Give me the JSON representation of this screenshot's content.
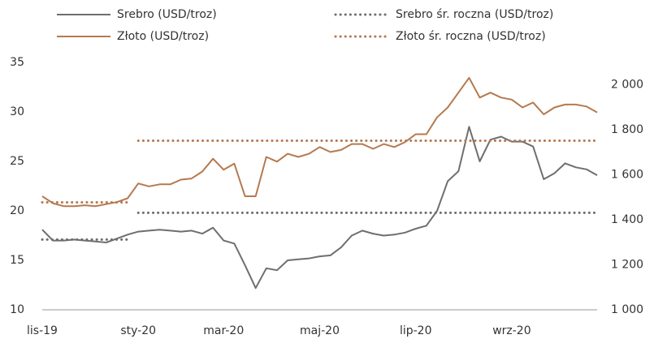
{
  "chart_data": {
    "type": "line",
    "categories": [
      "lis-19",
      null,
      null,
      null,
      null,
      null,
      null,
      null,
      null,
      "sty-20",
      null,
      null,
      null,
      null,
      null,
      null,
      null,
      "mar-20",
      null,
      null,
      null,
      null,
      null,
      null,
      null,
      null,
      "maj-20",
      null,
      null,
      null,
      null,
      null,
      null,
      null,
      null,
      "lip-20",
      null,
      null,
      null,
      null,
      null,
      null,
      null,
      null,
      "wrz-20",
      null,
      null,
      null,
      null,
      null,
      null,
      null,
      null
    ],
    "series": [
      {
        "name": "Srebro (USD/troz)",
        "color": "#6e6e6e",
        "style": "solid",
        "axis": "y",
        "values": [
          18.1,
          17.0,
          17.0,
          17.1,
          17.0,
          16.9,
          16.8,
          17.2,
          17.6,
          17.9,
          18.0,
          18.1,
          18.0,
          17.9,
          18.0,
          17.7,
          18.3,
          17.0,
          16.7,
          14.5,
          12.2,
          14.2,
          14.0,
          15.0,
          15.1,
          15.2,
          15.4,
          15.5,
          16.3,
          17.5,
          18.0,
          17.7,
          17.5,
          17.6,
          17.8,
          18.2,
          18.5,
          20.0,
          23.0,
          24.0,
          28.5,
          25.0,
          27.2,
          27.5,
          27.0,
          27.0,
          26.5,
          23.2,
          23.8,
          24.8,
          24.4,
          24.2,
          23.6
        ]
      },
      {
        "name": "Złoto (USD/troz)",
        "color": "#b5794f",
        "style": "solid",
        "axis": "y2",
        "values": [
          1505,
          1474,
          1461,
          1461,
          1465,
          1461,
          1470,
          1479,
          1496,
          1562,
          1549,
          1558,
          1558,
          1579,
          1584,
          1615,
          1672,
          1623,
          1650,
          1505,
          1505,
          1680,
          1659,
          1694,
          1680,
          1694,
          1724,
          1702,
          1711,
          1737,
          1737,
          1716,
          1737,
          1724,
          1746,
          1781,
          1781,
          1856,
          1900,
          1966,
          2032,
          1944,
          1966,
          1944,
          1935,
          1900,
          1922,
          1869,
          1900,
          1913,
          1913,
          1904,
          1878
        ]
      },
      {
        "name": "Srebro śr. roczna (USD/troz)",
        "color": "#6e6e6e",
        "style": "dotted",
        "axis": "y",
        "values": [
          17.1,
          17.1,
          17.1,
          17.1,
          17.1,
          17.1,
          17.1,
          17.1,
          17.1,
          19.8,
          19.8,
          19.8,
          19.8,
          19.8,
          19.8,
          19.8,
          19.8,
          19.8,
          19.8,
          19.8,
          19.8,
          19.8,
          19.8,
          19.8,
          19.8,
          19.8,
          19.8,
          19.8,
          19.8,
          19.8,
          19.8,
          19.8,
          19.8,
          19.8,
          19.8,
          19.8,
          19.8,
          19.8,
          19.8,
          19.8,
          19.8,
          19.8,
          19.8,
          19.8,
          19.8,
          19.8,
          19.8,
          19.8,
          19.8,
          19.8,
          19.8,
          19.8,
          19.8
        ]
      },
      {
        "name": "Złoto śr. roczna (USD/troz)",
        "color": "#b5794f",
        "style": "dotted",
        "axis": "y2",
        "values": [
          1478,
          1478,
          1478,
          1478,
          1478,
          1478,
          1478,
          1478,
          1478,
          1752,
          1752,
          1752,
          1752,
          1752,
          1752,
          1752,
          1752,
          1752,
          1752,
          1752,
          1752,
          1752,
          1752,
          1752,
          1752,
          1752,
          1752,
          1752,
          1752,
          1752,
          1752,
          1752,
          1752,
          1752,
          1752,
          1752,
          1752,
          1752,
          1752,
          1752,
          1752,
          1752,
          1752,
          1752,
          1752,
          1752,
          1752,
          1752,
          1752,
          1752,
          1752,
          1752,
          1752
        ]
      }
    ],
    "ylim": [
      10,
      35
    ],
    "yticks": [
      10,
      15,
      20,
      25,
      30,
      35
    ],
    "y2lim": [
      1000,
      2100
    ],
    "y2ticks": [
      {
        "value": 1000,
        "label": "1 000"
      },
      {
        "value": 1200,
        "label": "1 200"
      },
      {
        "value": 1400,
        "label": "1 400"
      },
      {
        "value": 1600,
        "label": "1 600"
      },
      {
        "value": 1800,
        "label": "1 800"
      },
      {
        "value": 2000,
        "label": "2 000"
      }
    ],
    "grid": false
  }
}
